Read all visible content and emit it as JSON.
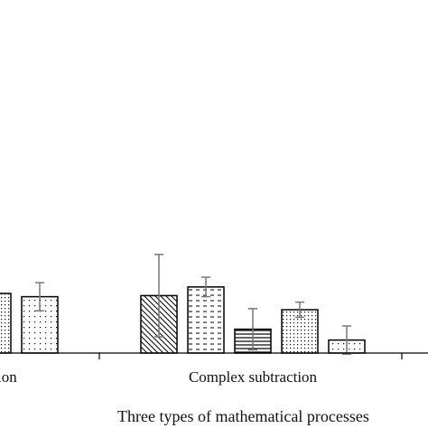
{
  "chart_data": {
    "type": "bar",
    "xlabel": "Three types of mathematical processes",
    "categories": [
      "ion",
      "Complex subtraction"
    ],
    "y_range": [
      0,
      100
    ],
    "grid": false,
    "series_patterns": [
      "backslash-hatch",
      "dashes",
      "horizontal-lines",
      "dense-dots",
      "sparse-dots"
    ],
    "groups": [
      {
        "category": "ion",
        "bars": [
          {
            "pattern": "dense-dots",
            "value": 55,
            "error": null
          },
          {
            "pattern": "sparse-dots",
            "value": 52,
            "error": 13
          }
        ]
      },
      {
        "category": "Complex subtraction",
        "bars": [
          {
            "pattern": "backslash-hatch",
            "value": 53,
            "error": 38
          },
          {
            "pattern": "dashes",
            "value": 61,
            "error": 9
          },
          {
            "pattern": "horizontal-lines",
            "value": 22,
            "error": 19
          },
          {
            "pattern": "dense-dots",
            "value": 40,
            "error": 7
          },
          {
            "pattern": "sparse-dots",
            "value": 12,
            "error": 13
          }
        ]
      }
    ]
  }
}
